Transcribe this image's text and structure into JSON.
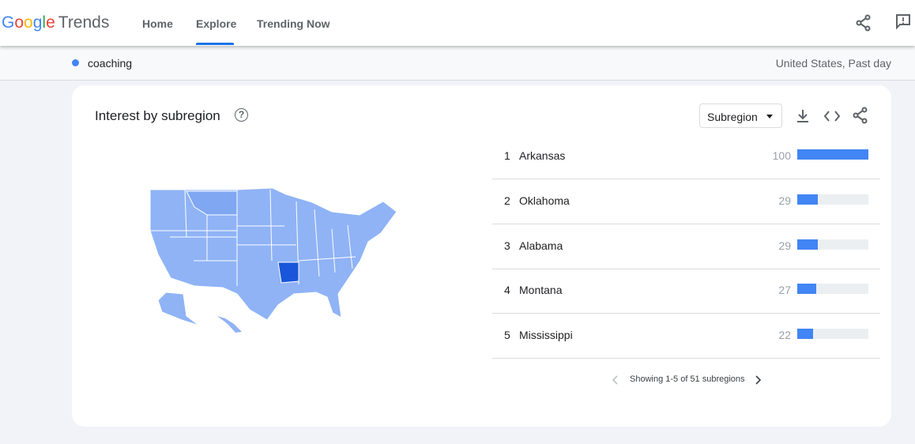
{
  "header": {
    "logo": {
      "brand": "Google",
      "product": "Trends"
    },
    "nav": [
      "Home",
      "Explore",
      "Trending Now"
    ]
  },
  "search": {
    "term": "coaching",
    "scope": "United States, Past day"
  },
  "panel": {
    "title": "Interest by subregion",
    "dropdown": "Subregion",
    "rows": [
      {
        "rank": 1,
        "name": "Arkansas",
        "value": 100
      },
      {
        "rank": 2,
        "name": "Oklahoma",
        "value": 29
      },
      {
        "rank": 3,
        "name": "Alabama",
        "value": 29
      },
      {
        "rank": 4,
        "name": "Montana",
        "value": 27
      },
      {
        "rank": 5,
        "name": "Mississippi",
        "value": 22
      }
    ],
    "pagination": "Showing 1-5 of 51 subregions"
  }
}
